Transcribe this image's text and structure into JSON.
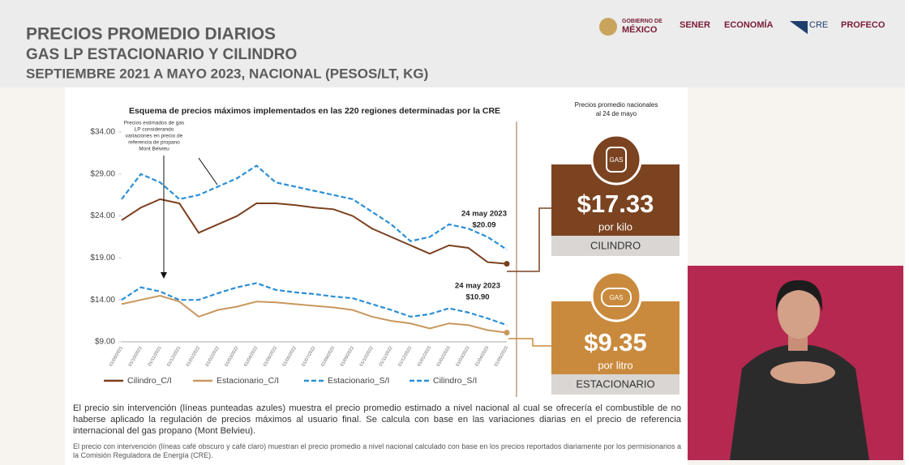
{
  "header": {
    "title": "PRECIOS PROMEDIO DIARIOS",
    "subtitle": "GAS LP ESTACIONARIO Y CILINDRO",
    "period": "SEPTIEMBRE 2021 A MAYO 2023, NACIONAL (PESOS/LT, KG)",
    "logos": [
      "GOBIERNO DE",
      "MÉXICO",
      "SENER",
      "ECONOMÍA",
      "CRE",
      "PROFECO"
    ]
  },
  "chart_data": {
    "type": "line",
    "title": "Esquema de precios máximos implementados en las 220 regiones determinadas por la CRE",
    "categories": [
      "01/09/2021",
      "01/10/2021",
      "01/11/2021",
      "01/12/2021",
      "01/01/2022",
      "01/02/2022",
      "01/03/2022",
      "01/04/2022",
      "01/05/2022",
      "01/06/2022",
      "01/07/2022",
      "01/08/2022",
      "01/09/2022",
      "01/10/2022",
      "01/11/2022",
      "01/12/2022",
      "01/01/2023",
      "01/02/2023",
      "01/03/2023",
      "01/04/2023",
      "01/05/2023"
    ],
    "series": [
      {
        "name": "Cilindro_C/I",
        "color": "#7b3f1e",
        "dash": false,
        "values": [
          23.5,
          25,
          26,
          25.5,
          22,
          23,
          24,
          25.5,
          25.5,
          25.3,
          25,
          24.8,
          24,
          22.5,
          21.5,
          20.5,
          19.5,
          20.5,
          20.2,
          18.5,
          18.3
        ]
      },
      {
        "name": "Estacionario_C/I",
        "color": "#c9975f",
        "dash": false,
        "values": [
          13.5,
          14,
          14.5,
          13.8,
          12,
          12.8,
          13.2,
          13.8,
          13.7,
          13.5,
          13.3,
          13.1,
          12.8,
          12,
          11.5,
          11.2,
          10.6,
          11.2,
          11,
          10.4,
          10.1
        ]
      },
      {
        "name": "Estacionario_S/I",
        "color": "#2b8fd6",
        "dash": true,
        "values": [
          14,
          15.5,
          15,
          14,
          14,
          14.8,
          15.5,
          16,
          15.2,
          14.9,
          14.7,
          14.4,
          14.2,
          13.5,
          12.8,
          12,
          12.3,
          13,
          12.5,
          11.8,
          11
        ]
      },
      {
        "name": "Cilindro_S/I",
        "color": "#2b8fd6",
        "dash": true,
        "values": [
          26,
          29,
          28,
          26,
          26.5,
          27.5,
          28.5,
          30,
          28,
          27.5,
          27,
          26.5,
          26,
          24.5,
          23,
          21,
          21.5,
          23,
          22.5,
          21.5,
          20
        ]
      }
    ],
    "ylim": [
      9,
      34
    ],
    "yticks": [
      {
        "value": 9,
        "label": "$9.00"
      },
      {
        "value": 14,
        "label": "$14.00"
      },
      {
        "value": 19,
        "label": "$19.00"
      },
      {
        "value": 24,
        "label": "$24.00"
      },
      {
        "value": 29,
        "label": "$29.00"
      },
      {
        "value": 34,
        "label": "$34.00"
      }
    ],
    "annotations": [
      "Precios estimados de gas",
      "LP considerando",
      "variaciones en precio de",
      "referencia de propano",
      "Mont Belvieu",
      "24 may 2023",
      "$20.09",
      "24 may 2023",
      "$10.90"
    ]
  },
  "cards": {
    "heading": [
      "Precios promedio nacionales",
      "al 24 de mayo"
    ],
    "items": [
      {
        "icon": "GAS",
        "price": "$17.33",
        "unit": "por kilo",
        "label": "CILINDRO"
      },
      {
        "icon": "GAS",
        "price": "$9.35",
        "unit": "por litro",
        "label": "ESTACIONARIO"
      }
    ]
  },
  "notes": [
    "El precio sin intervención (líneas punteadas azules) muestra el precio promedio estimado a nivel nacional al cual se ofrecería el combustible de no haberse aplicado la regulación de precios máximos al usuario final. Se calcula con base en las variaciones diarias en el precio de referencia internacional del gas propano (Mont Belvieu).",
    "El precio con intervención (líneas café obscuro y café claro) muestran el precio promedio a nivel nacional calculado con base en los precios reportados diariamente por los permisionarios a la Comisión Reguladora de Energía (CRE)."
  ]
}
